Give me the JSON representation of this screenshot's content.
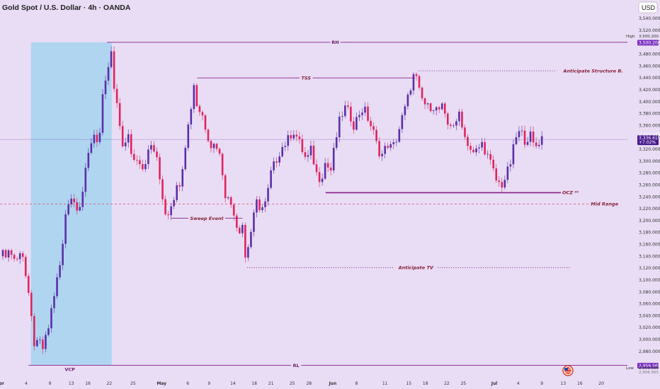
{
  "header": {
    "title": "Gold Spot / U.S. Dollar · 4h · OANDA",
    "currency_button": "USD"
  },
  "colors": {
    "background": "#e8ddf5",
    "bull_candle": "#5b2fa8",
    "bear_candle": "#e0245e",
    "zone_fill": "#a9d4f0",
    "level_line": "#8b1f8b",
    "annotation": "#8b1f3a",
    "badge": "#7b2fc0",
    "price_badge": "#4a1c8c"
  },
  "chart_data": {
    "type": "candlestick",
    "symbol": "XAUUSD",
    "timeframe": "4h",
    "ylim": [
      2950,
      3545
    ],
    "xlim": [
      0,
      132
    ],
    "grid": false,
    "y_ticks": [
      "3,540.000",
      "3,520.000",
      "3,500.000",
      "3,480.000",
      "3,460.000",
      "3,440.000",
      "3,420.000",
      "3,400.000",
      "3,380.000",
      "3,360.000",
      "3,340.000",
      "3,320.000",
      "3,300.000",
      "3,280.000",
      "3,260.000",
      "3,240.000",
      "3,220.000",
      "3,200.000",
      "3,180.000",
      "3,160.000",
      "3,140.000",
      "3,120.000",
      "3,100.000",
      "3,080.000",
      "3,060.000",
      "3,040.000",
      "3,020.000",
      "3,000.000",
      "2,980.000"
    ],
    "x_ticks": [
      {
        "label": "Apr",
        "x": 0
      },
      {
        "label": "4",
        "x": 5.5
      },
      {
        "label": "9",
        "x": 10.5
      },
      {
        "label": "13",
        "x": 15
      },
      {
        "label": "16",
        "x": 18.5
      },
      {
        "label": "22",
        "x": 23
      },
      {
        "label": "25",
        "x": 28
      },
      {
        "label": "May",
        "x": 34
      },
      {
        "label": "6",
        "x": 39.5
      },
      {
        "label": "9",
        "x": 44
      },
      {
        "label": "14",
        "x": 49
      },
      {
        "label": "18",
        "x": 53.5
      },
      {
        "label": "21",
        "x": 57
      },
      {
        "label": "25",
        "x": 61.5
      },
      {
        "label": "28",
        "x": 65
      },
      {
        "label": "Jun",
        "x": 70
      },
      {
        "label": "8",
        "x": 75
      },
      {
        "label": "11",
        "x": 81
      },
      {
        "label": "15",
        "x": 86
      },
      {
        "label": "18",
        "x": 89.5
      },
      {
        "label": "22",
        "x": 94
      },
      {
        "label": "25",
        "x": 97.5
      },
      {
        "label": "Jul",
        "x": 104
      },
      {
        "label": "4",
        "x": 109
      },
      {
        "label": "9",
        "x": 114
      },
      {
        "label": "13",
        "x": 118.5
      },
      {
        "label": "16",
        "x": 122
      },
      {
        "label": "20",
        "x": 126.5
      }
    ],
    "close_path": [
      [
        0,
        3140
      ],
      [
        2,
        3150
      ],
      [
        3.5,
        3130
      ],
      [
        4.5,
        3160
      ],
      [
        5.5,
        3100
      ],
      [
        6.5,
        3040
      ],
      [
        7.5,
        2975
      ],
      [
        8,
        3000
      ],
      [
        9,
        2985
      ],
      [
        10,
        3010
      ],
      [
        11,
        3060
      ],
      [
        12,
        3100
      ],
      [
        13,
        3140
      ],
      [
        14,
        3230
      ],
      [
        15,
        3240
      ],
      [
        16,
        3225
      ],
      [
        17,
        3230
      ],
      [
        18,
        3280
      ],
      [
        19,
        3330
      ],
      [
        20,
        3350
      ],
      [
        20.8,
        3325
      ],
      [
        21.5,
        3400
      ],
      [
        22.5,
        3440
      ],
      [
        23.3,
        3490
      ],
      [
        24,
        3420
      ],
      [
        25,
        3370
      ],
      [
        26,
        3320
      ],
      [
        27,
        3340
      ],
      [
        28,
        3300
      ],
      [
        29,
        3310
      ],
      [
        30,
        3290
      ],
      [
        31,
        3310
      ],
      [
        32,
        3330
      ],
      [
        33,
        3300
      ],
      [
        34,
        3250
      ],
      [
        35,
        3205
      ],
      [
        36,
        3230
      ],
      [
        37,
        3250
      ],
      [
        38,
        3270
      ],
      [
        39,
        3330
      ],
      [
        40,
        3380
      ],
      [
        40.8,
        3430
      ],
      [
        41.5,
        3390
      ],
      [
        42.5,
        3380
      ],
      [
        43.5,
        3350
      ],
      [
        44.5,
        3325
      ],
      [
        45.5,
        3330
      ],
      [
        46.5,
        3300
      ],
      [
        47.5,
        3240
      ],
      [
        48.5,
        3230
      ],
      [
        49.5,
        3210
      ],
      [
        50,
        3180
      ],
      [
        51,
        3195
      ],
      [
        51.5,
        3135
      ],
      [
        52,
        3150
      ],
      [
        53,
        3190
      ],
      [
        54,
        3230
      ],
      [
        55,
        3220
      ],
      [
        56,
        3230
      ],
      [
        57,
        3280
      ],
      [
        58,
        3300
      ],
      [
        59,
        3320
      ],
      [
        60,
        3330
      ],
      [
        61,
        3340
      ],
      [
        61.5,
        3355
      ],
      [
        62.5,
        3340
      ],
      [
        63.5,
        3320
      ],
      [
        64.5,
        3300
      ],
      [
        65.5,
        3320
      ],
      [
        66.5,
        3280
      ],
      [
        67.5,
        3270
      ],
      [
        68.5,
        3300
      ],
      [
        69.5,
        3280
      ],
      [
        70.5,
        3330
      ],
      [
        71.5,
        3370
      ],
      [
        72.5,
        3390
      ],
      [
        73.5,
        3380
      ],
      [
        74.5,
        3360
      ],
      [
        75.5,
        3380
      ],
      [
        76.5,
        3390
      ],
      [
        77.5,
        3370
      ],
      [
        78.5,
        3350
      ],
      [
        79.5,
        3320
      ],
      [
        80.5,
        3310
      ],
      [
        81.5,
        3330
      ],
      [
        82.5,
        3320
      ],
      [
        83.5,
        3340
      ],
      [
        84.5,
        3370
      ],
      [
        85.5,
        3395
      ],
      [
        86.5,
        3430
      ],
      [
        87.3,
        3450
      ],
      [
        88,
        3420
      ],
      [
        89,
        3400
      ],
      [
        90,
        3390
      ],
      [
        91,
        3395
      ],
      [
        92,
        3385
      ],
      [
        93,
        3390
      ],
      [
        94,
        3360
      ],
      [
        95,
        3365
      ],
      [
        96,
        3360
      ],
      [
        96.8,
        3390
      ],
      [
        97.5,
        3345
      ],
      [
        98.5,
        3330
      ],
      [
        99.5,
        3310
      ],
      [
        100.5,
        3320
      ],
      [
        101.5,
        3330
      ],
      [
        102.5,
        3310
      ],
      [
        103.5,
        3290
      ],
      [
        104.5,
        3265
      ],
      [
        105.5,
        3260
      ],
      [
        106.5,
        3275
      ],
      [
        107.5,
        3300
      ],
      [
        108.5,
        3340
      ],
      [
        109.5,
        3350
      ],
      [
        110.5,
        3335
      ],
      [
        111.5,
        3345
      ],
      [
        112.5,
        3320
      ],
      [
        113,
        3330
      ],
      [
        114,
        3340
      ],
      [
        114.5,
        3336
      ]
    ],
    "levels": [
      {
        "label": "RH",
        "y": 3500,
        "x0": 22.5,
        "x1": 132,
        "style": "solid"
      },
      {
        "label": "RL",
        "y": 2956.565,
        "x0": 6,
        "x1": 132,
        "style": "solid"
      },
      {
        "label": "TSS",
        "y": 3440,
        "x0": 41.5,
        "x1": 87.3,
        "style": "solid"
      },
      {
        "label": "Anticipate Structure B.",
        "y": 3452,
        "x0": 88,
        "x1": 130,
        "style": "dotted"
      },
      {
        "label": "Sweep Event",
        "y": 3204,
        "x0": 36,
        "x1": 51,
        "style": "solid"
      },
      {
        "label": "Anticipate TV",
        "y": 3121,
        "x0": 52,
        "x1": 120,
        "style": "dotted"
      },
      {
        "label": "Mid Range",
        "y": 3228,
        "x0": 0,
        "x1": 124,
        "style": "dashed"
      },
      {
        "label": "OCZ ⁹⁹",
        "y": 3247,
        "x0": 68.5,
        "x1": 118,
        "style": "solid"
      }
    ],
    "vcp_zone": {
      "label": "VCP",
      "x0": 6.5,
      "x1": 23.5,
      "y0": 2956.565,
      "y1": 3500
    },
    "current_price": {
      "value": "3,336.615",
      "change": "+7.02%",
      "y": 3336.615
    },
    "high": {
      "label": "High",
      "value": "3,500.200"
    },
    "low": {
      "label": "Low",
      "value": "2,956.565"
    },
    "extra_prices": [
      "3,500.200",
      "2,956.565",
      "2,956.565",
      "3,330.615"
    ]
  }
}
